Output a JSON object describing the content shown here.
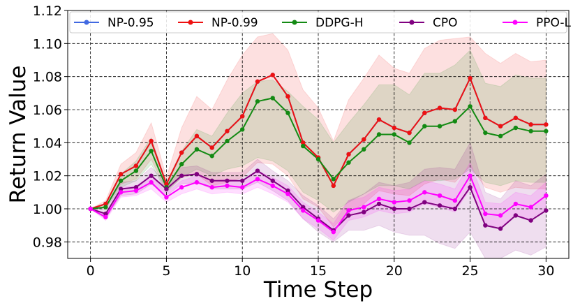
{
  "chart_data": {
    "type": "line",
    "title": "",
    "xlabel": "Time Step",
    "ylabel": "Return Value",
    "xlim": [
      -1.5,
      31.5
    ],
    "ylim": [
      0.97,
      1.12
    ],
    "grid": true,
    "legend_position": "top",
    "xticks": [
      0,
      5,
      10,
      15,
      20,
      25,
      30
    ],
    "xtick_labels": [
      "0",
      "5",
      "10",
      "15",
      "20",
      "25",
      "30"
    ],
    "yticks": [
      0.98,
      1.0,
      1.02,
      1.04,
      1.06,
      1.08,
      1.1,
      1.12
    ],
    "ytick_labels": [
      "0.98",
      "1.00",
      "1.02",
      "1.04",
      "1.06",
      "1.08",
      "1.10",
      "1.12"
    ],
    "x": [
      0,
      1,
      2,
      3,
      4,
      5,
      6,
      7,
      8,
      9,
      10,
      11,
      12,
      13,
      14,
      15,
      16,
      17,
      18,
      19,
      20,
      21,
      22,
      23,
      24,
      25,
      26,
      27,
      28,
      29,
      30
    ],
    "series": [
      {
        "name": "NP-0.95",
        "color": "#4169e1",
        "values": [
          1.0,
          1.003,
          1.021,
          1.026,
          1.041,
          1.015,
          1.034,
          1.044,
          1.037,
          1.047,
          1.056,
          1.077,
          1.081,
          1.068,
          1.04,
          1.031,
          1.014,
          1.033,
          1.042,
          1.054,
          1.049,
          1.046,
          1.058,
          1.061,
          1.06,
          1.079,
          1.055,
          1.05,
          1.055,
          1.051,
          1.051
        ],
        "band_lower": null,
        "band_upper": null
      },
      {
        "name": "NP-0.99",
        "color": "#ee1111",
        "values": [
          1.0,
          1.003,
          1.021,
          1.026,
          1.041,
          1.015,
          1.034,
          1.044,
          1.037,
          1.047,
          1.056,
          1.077,
          1.081,
          1.068,
          1.04,
          1.031,
          1.014,
          1.033,
          1.042,
          1.054,
          1.049,
          1.046,
          1.058,
          1.061,
          1.06,
          1.079,
          1.055,
          1.05,
          1.055,
          1.051,
          1.051
        ],
        "band_lower": [
          1.0,
          1.001,
          1.015,
          1.018,
          1.03,
          1.011,
          1.019,
          1.021,
          1.014,
          1.016,
          1.019,
          1.028,
          1.027,
          1.02,
          1.006,
          1.001,
          0.989,
          0.998,
          1.003,
          1.011,
          1.009,
          1.008,
          1.015,
          1.018,
          1.016,
          1.026,
          1.013,
          1.01,
          1.013,
          1.012,
          1.012
        ],
        "band_upper": [
          1.0,
          1.005,
          1.027,
          1.034,
          1.052,
          1.019,
          1.049,
          1.068,
          1.06,
          1.078,
          1.093,
          1.104,
          1.106,
          1.096,
          1.072,
          1.061,
          1.041,
          1.066,
          1.079,
          1.093,
          1.085,
          1.082,
          1.097,
          1.102,
          1.103,
          1.104,
          1.094,
          1.088,
          1.094,
          1.089,
          1.09
        ]
      },
      {
        "name": "DDPG-H",
        "color": "#138a13",
        "values": [
          1.0,
          1.001,
          1.017,
          1.023,
          1.035,
          1.013,
          1.027,
          1.036,
          1.032,
          1.041,
          1.048,
          1.065,
          1.067,
          1.058,
          1.038,
          1.03,
          1.018,
          1.028,
          1.036,
          1.045,
          1.045,
          1.04,
          1.05,
          1.05,
          1.053,
          1.062,
          1.046,
          1.044,
          1.049,
          1.047,
          1.047
        ],
        "band_lower": [
          1.0,
          1.0,
          1.013,
          1.017,
          1.027,
          1.01,
          1.019,
          1.024,
          1.02,
          1.024,
          1.026,
          1.031,
          1.029,
          1.023,
          1.01,
          1.005,
          0.998,
          1.004,
          1.009,
          1.014,
          1.014,
          1.012,
          1.017,
          1.017,
          1.018,
          1.024,
          1.016,
          1.014,
          1.017,
          1.016,
          1.016
        ],
        "band_upper": [
          1.0,
          1.003,
          1.021,
          1.029,
          1.043,
          1.016,
          1.035,
          1.048,
          1.044,
          1.058,
          1.07,
          1.077,
          1.078,
          1.071,
          1.062,
          1.054,
          1.04,
          1.052,
          1.063,
          1.075,
          1.075,
          1.069,
          1.082,
          1.082,
          1.087,
          1.096,
          1.076,
          1.074,
          1.081,
          1.079,
          1.079
        ]
      },
      {
        "name": "CPO",
        "color": "#800080",
        "values": [
          1.0,
          0.997,
          1.012,
          1.013,
          1.02,
          1.012,
          1.02,
          1.021,
          1.017,
          1.017,
          1.017,
          1.023,
          1.017,
          1.011,
          1.001,
          0.994,
          0.987,
          0.996,
          0.998,
          1.003,
          1.0,
          1.0,
          1.004,
          1.002,
          1.0,
          1.013,
          0.99,
          0.988,
          0.996,
          0.993,
          0.999
        ],
        "band_lower": [
          1.0,
          0.994,
          1.008,
          1.009,
          1.015,
          1.008,
          1.015,
          1.016,
          1.012,
          1.012,
          1.012,
          1.016,
          1.011,
          1.005,
          0.994,
          0.986,
          0.98,
          0.987,
          0.987,
          0.99,
          0.986,
          0.984,
          0.984,
          0.979,
          0.976,
          0.986,
          0.97,
          0.97,
          0.975,
          0.972,
          0.977
        ],
        "band_upper": [
          1.0,
          1.0,
          1.016,
          1.017,
          1.025,
          1.016,
          1.025,
          1.026,
          1.022,
          1.022,
          1.022,
          1.03,
          1.023,
          1.017,
          1.008,
          1.002,
          0.994,
          1.005,
          1.009,
          1.016,
          1.014,
          1.016,
          1.024,
          1.025,
          1.024,
          1.04,
          1.01,
          1.006,
          1.017,
          1.014,
          1.021
        ]
      },
      {
        "name": "PPO-L",
        "color": "#ff00ff",
        "values": [
          1.0,
          0.995,
          1.01,
          1.011,
          1.016,
          1.007,
          1.013,
          1.016,
          1.013,
          1.014,
          1.013,
          1.018,
          1.014,
          1.009,
          0.999,
          0.993,
          0.986,
          0.999,
          1.001,
          1.006,
          1.004,
          1.005,
          1.01,
          1.008,
          1.005,
          1.02,
          0.997,
          0.996,
          1.003,
          1.001,
          1.008
        ],
        "band_lower": [
          1.0,
          0.993,
          1.007,
          1.008,
          1.012,
          1.004,
          1.009,
          1.012,
          1.009,
          1.01,
          1.009,
          1.013,
          1.009,
          1.004,
          0.994,
          0.988,
          0.981,
          0.993,
          0.995,
          0.999,
          0.997,
          0.998,
          1.003,
          1.001,
          0.998,
          1.012,
          0.99,
          0.989,
          0.996,
          0.994,
          1.0
        ],
        "band_upper": [
          1.0,
          0.997,
          1.013,
          1.014,
          1.02,
          1.01,
          1.017,
          1.02,
          1.017,
          1.018,
          1.017,
          1.023,
          1.019,
          1.014,
          1.004,
          0.998,
          0.991,
          1.005,
          1.007,
          1.013,
          1.011,
          1.012,
          1.017,
          1.015,
          1.012,
          1.028,
          1.004,
          1.003,
          1.01,
          1.008,
          1.016
        ]
      }
    ]
  }
}
